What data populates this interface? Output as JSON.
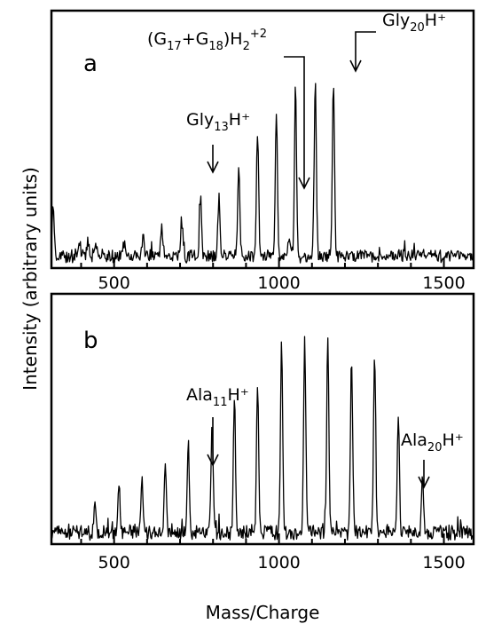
{
  "chart_data": {
    "type": "line",
    "xlabel": "Mass/Charge",
    "ylabel": "Intensity (arbitrary units)",
    "panels": [
      {
        "label": "a",
        "xlim": [
          310,
          1590
        ],
        "ylim": [
          0,
          1
        ],
        "xticks": [
          500,
          1000,
          1500
        ],
        "baseline": 0.04,
        "noise": 0.022,
        "peaks": [
          {
            "x": 315,
            "y": 0.25
          },
          {
            "x": 395,
            "y": 0.1
          },
          {
            "x": 420,
            "y": 0.09
          },
          {
            "x": 445,
            "y": 0.08
          },
          {
            "x": 530,
            "y": 0.09
          },
          {
            "x": 588,
            "y": 0.11
          },
          {
            "x": 645,
            "y": 0.14
          },
          {
            "x": 705,
            "y": 0.18
          },
          {
            "x": 762,
            "y": 0.27
          },
          {
            "x": 818,
            "y": 0.27
          },
          {
            "x": 878,
            "y": 0.4
          },
          {
            "x": 935,
            "y": 0.52
          },
          {
            "x": 992,
            "y": 0.6
          },
          {
            "x": 1030,
            "y": 0.11
          },
          {
            "x": 1050,
            "y": 0.7
          },
          {
            "x": 1110,
            "y": 0.73
          },
          {
            "x": 1165,
            "y": 0.71
          }
        ],
        "annotations": [
          {
            "text": "Gly",
            "sub": "13",
            "sup": "H⁺",
            "x": 762
          },
          {
            "text": "(G",
            "sub1": "17",
            "mid": "+G",
            "sub2": "18",
            "end": ")H",
            "sub3": "2",
            "sup": "+2",
            "x": 1030
          },
          {
            "text": "Gly",
            "sub": "20",
            "sup": "H⁺",
            "x": 1165
          }
        ]
      },
      {
        "label": "b",
        "xlim": [
          310,
          1590
        ],
        "ylim": [
          0,
          1
        ],
        "xticks": [
          500,
          1000,
          1500
        ],
        "baseline": 0.04,
        "noise": 0.026,
        "peaks": [
          {
            "x": 442,
            "y": 0.15
          },
          {
            "x": 515,
            "y": 0.23
          },
          {
            "x": 585,
            "y": 0.24
          },
          {
            "x": 655,
            "y": 0.29
          },
          {
            "x": 725,
            "y": 0.4
          },
          {
            "x": 797,
            "y": 0.47
          },
          {
            "x": 865,
            "y": 0.58
          },
          {
            "x": 935,
            "y": 0.65
          },
          {
            "x": 1008,
            "y": 0.79
          },
          {
            "x": 1078,
            "y": 0.82
          },
          {
            "x": 1148,
            "y": 0.82
          },
          {
            "x": 1220,
            "y": 0.74
          },
          {
            "x": 1290,
            "y": 0.75
          },
          {
            "x": 1362,
            "y": 0.52
          },
          {
            "x": 1435,
            "y": 0.29
          }
        ],
        "annotations": [
          {
            "text": "Ala",
            "sub": "11",
            "sup": "H⁺",
            "x": 797
          },
          {
            "text": "Ala",
            "sub": "20",
            "sup": "H⁺",
            "x": 1435
          }
        ]
      }
    ]
  }
}
